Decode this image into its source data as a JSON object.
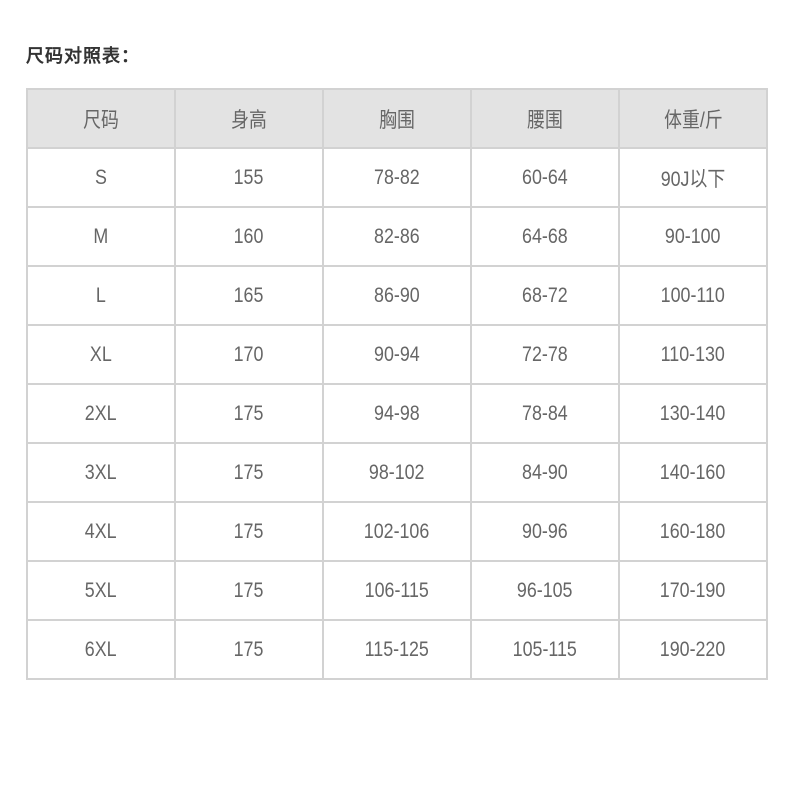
{
  "title": "尺码对照表：",
  "table": {
    "headers": [
      "尺码",
      "身高",
      "胸围",
      "腰围",
      "体重/斤"
    ],
    "rows": [
      [
        "S",
        "155",
        "78-82",
        "60-64",
        "90J以下"
      ],
      [
        "M",
        "160",
        "82-86",
        "64-68",
        "90-100"
      ],
      [
        "L",
        "165",
        "86-90",
        "68-72",
        "100-110"
      ],
      [
        "XL",
        "170",
        "90-94",
        "72-78",
        "110-130"
      ],
      [
        "2XL",
        "175",
        "94-98",
        "78-84",
        "130-140"
      ],
      [
        "3XL",
        "175",
        "98-102",
        "84-90",
        "140-160"
      ],
      [
        "4XL",
        "175",
        "102-106",
        "90-96",
        "160-180"
      ],
      [
        "5XL",
        "175",
        "106-115",
        "96-105",
        "170-190"
      ],
      [
        "6XL",
        "175",
        "115-125",
        "105-115",
        "190-220"
      ]
    ]
  }
}
